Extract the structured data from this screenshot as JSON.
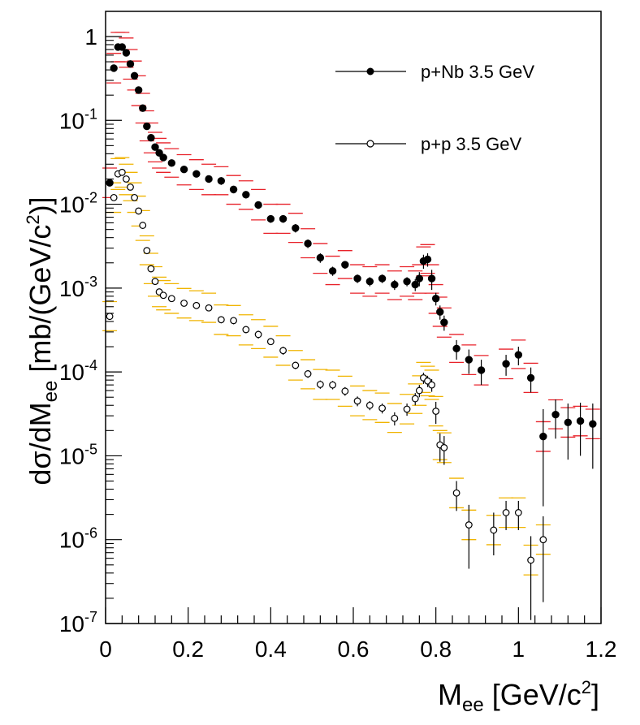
{
  "chart_data": {
    "type": "scatter",
    "xlabel": "M",
    "xlabel_sub": "ee",
    "xlabel_unit": "[GeV/c",
    "xlabel_sup": "2",
    "xlabel_close": "]",
    "ylabel": "dσ/dM",
    "ylabel_sub": "ee",
    "ylabel_unit": "[mb/(GeV/c",
    "ylabel_sup": "2",
    "ylabel_close": ")]",
    "xlim": [
      0,
      1.2
    ],
    "ylim_log10": [
      -7,
      0.3
    ],
    "x_ticks": [
      "0",
      "0.2",
      "0.4",
      "0.6",
      "0.8",
      "1",
      "1.2"
    ],
    "y_ticks": [
      {
        "base": "1",
        "exp": ""
      },
      {
        "base": "10",
        "exp": "-1"
      },
      {
        "base": "10",
        "exp": "-2"
      },
      {
        "base": "10",
        "exp": "-3"
      },
      {
        "base": "10",
        "exp": "-4"
      },
      {
        "base": "10",
        "exp": "-5"
      },
      {
        "base": "10",
        "exp": "-6"
      },
      {
        "base": "10",
        "exp": "-7"
      }
    ],
    "legend_position": "top-right",
    "series": [
      {
        "name": "p+Nb 3.5 GeV",
        "marker": "filled",
        "sys_color": "#e8222a",
        "x": [
          0.01,
          0.02,
          0.03,
          0.04,
          0.05,
          0.06,
          0.07,
          0.08,
          0.09,
          0.1,
          0.11,
          0.12,
          0.13,
          0.14,
          0.16,
          0.19,
          0.22,
          0.25,
          0.28,
          0.31,
          0.34,
          0.37,
          0.4,
          0.43,
          0.46,
          0.49,
          0.52,
          0.55,
          0.58,
          0.61,
          0.64,
          0.67,
          0.7,
          0.73,
          0.75,
          0.76,
          0.77,
          0.78,
          0.79,
          0.8,
          0.81,
          0.82,
          0.85,
          0.88,
          0.91,
          0.97,
          1.0,
          1.03,
          1.06,
          1.09,
          1.12,
          1.15,
          1.18
        ],
        "y": [
          0.018,
          0.42,
          0.75,
          0.75,
          0.64,
          0.47,
          0.34,
          0.23,
          0.14,
          0.085,
          0.062,
          0.048,
          0.041,
          0.036,
          0.031,
          0.026,
          0.023,
          0.02,
          0.019,
          0.015,
          0.013,
          0.0098,
          0.0067,
          0.0067,
          0.0052,
          0.0034,
          0.0023,
          0.0016,
          0.0019,
          0.0013,
          0.0012,
          0.0013,
          0.0011,
          0.0012,
          0.0011,
          0.0013,
          0.0021,
          0.0022,
          0.0013,
          0.00075,
          0.00052,
          0.00039,
          0.00019,
          0.00014,
          0.000105,
          0.000125,
          0.00016,
          8.5e-05,
          1.7e-05,
          3.1e-05,
          2.5e-05,
          2.6e-05,
          2.4e-05
        ],
        "err_lo": [
          0.012,
          0.28,
          0.5,
          0.5,
          0.43,
          0.31,
          0.23,
          0.15,
          0.093,
          0.057,
          0.041,
          0.032,
          0.027,
          0.024,
          0.021,
          0.017,
          0.015,
          0.013,
          0.013,
          0.01,
          0.0087,
          0.0065,
          0.0045,
          0.0045,
          0.0035,
          0.0023,
          0.0015,
          0.0011,
          0.0013,
          0.00087,
          0.0008,
          0.00087,
          0.00073,
          0.0008,
          0.00073,
          0.00087,
          0.0014,
          0.0015,
          0.00087,
          0.0005,
          0.00035,
          0.00026,
          0.00013,
          9.3e-05,
          7e-05,
          8.3e-05,
          0.00011,
          5.7e-05,
          1.13e-05,
          2.1e-05,
          1.67e-05,
          1.73e-05,
          1.6e-05
        ],
        "err_hi": [
          0.027,
          0.63,
          1.12,
          1.12,
          0.96,
          0.7,
          0.51,
          0.34,
          0.21,
          0.13,
          0.093,
          0.072,
          0.061,
          0.054,
          0.046,
          0.039,
          0.034,
          0.03,
          0.028,
          0.022,
          0.019,
          0.015,
          0.01,
          0.01,
          0.0078,
          0.0051,
          0.0034,
          0.0024,
          0.0028,
          0.0019,
          0.0018,
          0.0019,
          0.0016,
          0.0018,
          0.0016,
          0.0019,
          0.0031,
          0.0033,
          0.0019,
          0.0011,
          0.00078,
          0.00058,
          0.00028,
          0.00021,
          0.000157,
          0.000187,
          0.00024,
          0.000127,
          2.55e-05,
          4.65e-05,
          3.75e-05,
          3.9e-05,
          3.6e-05
        ],
        "stat_lo": [
          0.017,
          0.4,
          0.72,
          0.72,
          0.61,
          0.45,
          0.32,
          0.22,
          0.13,
          0.081,
          0.059,
          0.046,
          0.039,
          0.034,
          0.029,
          0.024,
          0.021,
          0.018,
          0.017,
          0.0135,
          0.0117,
          0.0088,
          0.006,
          0.006,
          0.0046,
          0.003,
          0.002,
          0.0014,
          0.0017,
          0.00115,
          0.00105,
          0.00115,
          0.00095,
          0.00105,
          0.00092,
          0.00105,
          0.0017,
          0.0018,
          0.00095,
          0.00062,
          0.00042,
          0.00031,
          0.00014,
          9.5e-05,
          7e-05,
          9e-05,
          0.00012,
          5.7e-05,
          2.5e-06,
          1.6e-05,
          9e-06,
          1e-05,
          7e-06
        ],
        "stat_hi": [
          0.019,
          0.44,
          0.78,
          0.78,
          0.67,
          0.49,
          0.36,
          0.24,
          0.15,
          0.089,
          0.065,
          0.05,
          0.043,
          0.038,
          0.033,
          0.028,
          0.025,
          0.022,
          0.021,
          0.0165,
          0.0143,
          0.0108,
          0.0074,
          0.0074,
          0.0058,
          0.0038,
          0.0026,
          0.0018,
          0.0021,
          0.00145,
          0.00135,
          0.00145,
          0.00125,
          0.00135,
          0.00128,
          0.00155,
          0.0025,
          0.0026,
          0.00165,
          0.00088,
          0.00062,
          0.00047,
          0.00024,
          0.000185,
          0.00014,
          0.00016,
          0.0002,
          0.000113,
          3.6e-05,
          4.7e-05,
          4.2e-05,
          4.3e-05,
          4.2e-05
        ]
      },
      {
        "name": "p+p 3.5 GeV",
        "marker": "open",
        "sys_color": "#f0b400",
        "x": [
          0.01,
          0.02,
          0.03,
          0.04,
          0.05,
          0.06,
          0.07,
          0.08,
          0.09,
          0.1,
          0.11,
          0.12,
          0.13,
          0.14,
          0.16,
          0.19,
          0.22,
          0.25,
          0.28,
          0.31,
          0.34,
          0.37,
          0.4,
          0.43,
          0.46,
          0.49,
          0.52,
          0.55,
          0.58,
          0.61,
          0.64,
          0.67,
          0.7,
          0.73,
          0.75,
          0.76,
          0.77,
          0.78,
          0.79,
          0.8,
          0.81,
          0.82,
          0.85,
          0.88,
          0.94,
          0.97,
          1.0,
          1.03,
          1.06
        ],
        "y": [
          0.00046,
          0.012,
          0.023,
          0.024,
          0.02,
          0.016,
          0.012,
          0.0083,
          0.0056,
          0.0028,
          0.0017,
          0.0012,
          0.0009,
          0.00082,
          0.00075,
          0.00066,
          0.00062,
          0.00058,
          0.00042,
          0.00041,
          0.00032,
          0.00028,
          0.00023,
          0.00018,
          0.00012,
          9.5e-05,
          7.1e-05,
          7e-05,
          5.9e-05,
          4.5e-05,
          4e-05,
          3.7e-05,
          2.8e-05,
          3.6e-05,
          4.8e-05,
          6e-05,
          8.5e-05,
          7.8e-05,
          7e-05,
          3.4e-05,
          1.35e-05,
          1.25e-05,
          3.6e-06,
          1.5e-06,
          1.3e-06,
          2.1e-06,
          2.1e-06,
          5.7e-07,
          1e-06
        ],
        "err_lo": [
          0.00031,
          0.008,
          0.015,
          0.016,
          0.013,
          0.011,
          0.008,
          0.0055,
          0.0037,
          0.0019,
          0.00113,
          0.0008,
          0.0006,
          0.00055,
          0.0005,
          0.00044,
          0.00041,
          0.00039,
          0.00028,
          0.00027,
          0.00021,
          0.00019,
          0.00015,
          0.00012,
          8e-05,
          6.3e-05,
          4.7e-05,
          4.7e-05,
          3.9e-05,
          3e-05,
          2.7e-05,
          2.5e-05,
          1.9e-05,
          2.4e-05,
          3.2e-05,
          4e-05,
          5.7e-05,
          5.2e-05,
          4.7e-05,
          2.27e-05,
          9e-06,
          8.3e-06,
          2.4e-06,
          1e-06,
          8.7e-07,
          1.4e-06,
          1.4e-06,
          3.8e-07,
          6.7e-07
        ],
        "err_hi": [
          0.00069,
          0.018,
          0.035,
          0.036,
          0.03,
          0.024,
          0.018,
          0.0125,
          0.0084,
          0.0042,
          0.0026,
          0.0018,
          0.00135,
          0.00123,
          0.00113,
          0.00099,
          0.00093,
          0.00087,
          0.00063,
          0.00062,
          0.00048,
          0.00042,
          0.00035,
          0.00027,
          0.00018,
          0.00014,
          0.000107,
          0.000105,
          8.9e-05,
          6.8e-05,
          6e-05,
          5.6e-05,
          4.2e-05,
          5.4e-05,
          7.2e-05,
          9e-05,
          0.00013,
          0.000117,
          0.000105,
          5.1e-05,
          2e-05,
          1.88e-05,
          5.4e-06,
          2.25e-06,
          1.95e-06,
          3.15e-06,
          3.15e-06,
          8.6e-07,
          1.5e-06
        ],
        "stat_lo": [
          0.00043,
          0.0115,
          0.022,
          0.023,
          0.019,
          0.015,
          0.0114,
          0.0078,
          0.0052,
          0.0026,
          0.0016,
          0.00112,
          0.00084,
          0.00076,
          0.0007,
          0.00061,
          0.00057,
          0.00053,
          0.00038,
          0.00037,
          0.00029,
          0.00025,
          0.00021,
          0.00016,
          0.000108,
          8.5e-05,
          6.3e-05,
          6.2e-05,
          5.2e-05,
          3.9e-05,
          3.5e-05,
          3.2e-05,
          2.3e-05,
          3e-05,
          4e-05,
          5e-05,
          7.2e-05,
          6.6e-05,
          5.8e-05,
          2.4e-05,
          8.5e-06,
          7.8e-06,
          2.2e-06,
          4.5e-07,
          6.5e-07,
          1.3e-06,
          1.3e-06,
          1.1e-07,
          1.8e-07
        ],
        "stat_hi": [
          0.00049,
          0.0125,
          0.024,
          0.025,
          0.021,
          0.017,
          0.0126,
          0.0088,
          0.006,
          0.003,
          0.0018,
          0.00128,
          0.00096,
          0.00088,
          0.0008,
          0.00071,
          0.00067,
          0.00063,
          0.00046,
          0.00045,
          0.00035,
          0.00031,
          0.00025,
          0.0002,
          0.000132,
          0.000105,
          7.9e-05,
          7.8e-05,
          6.6e-05,
          5.1e-05,
          4.5e-05,
          4.2e-05,
          3.3e-05,
          4.2e-05,
          5.6e-05,
          7e-05,
          9.8e-05,
          9e-05,
          8.2e-05,
          4.4e-05,
          1.85e-05,
          1.72e-05,
          5e-06,
          2.6e-06,
          2.1e-06,
          2.9e-06,
          2.9e-06,
          1.1e-06,
          1.9e-06
        ]
      }
    ]
  }
}
